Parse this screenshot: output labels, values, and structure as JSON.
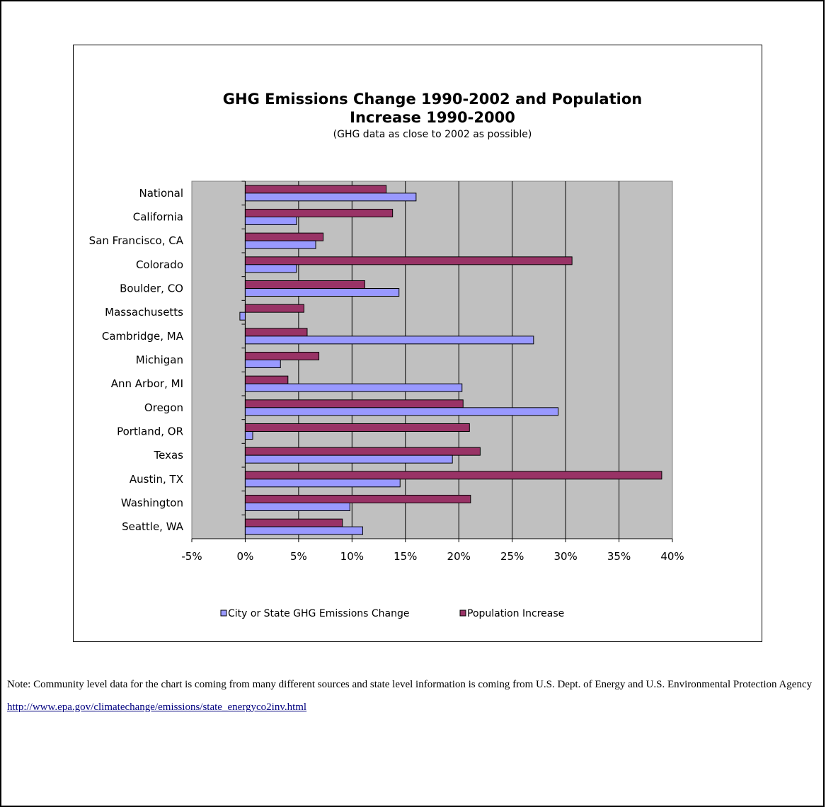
{
  "chart_data": {
    "type": "bar",
    "orientation": "horizontal",
    "title_line1": "GHG Emissions Change 1990-2002 and Population",
    "title_line2": "Increase 1990-2000",
    "subtitle": "(GHG data as close to 2002 as possible)",
    "categories": [
      "National",
      "California",
      "San Francisco, CA",
      "Colorado",
      "Boulder, CO",
      "Massachusetts",
      "Cambridge, MA",
      "Michigan",
      "Ann Arbor, MI",
      "Oregon",
      "Portland, OR",
      "Texas",
      "Austin, TX",
      "Washington",
      "Seattle, WA"
    ],
    "series": [
      {
        "name": "City or State GHG Emissions Change",
        "color": "#9999ff",
        "values": [
          16.0,
          4.8,
          6.6,
          4.8,
          14.4,
          -0.5,
          27.0,
          3.3,
          20.3,
          29.3,
          0.7,
          19.4,
          14.5,
          9.8,
          11.0
        ]
      },
      {
        "name": "Population Increase",
        "color": "#993366",
        "values": [
          13.2,
          13.8,
          7.3,
          30.6,
          11.2,
          5.5,
          5.8,
          6.9,
          4.0,
          20.4,
          21.0,
          22.0,
          39.0,
          21.1,
          9.1
        ]
      }
    ],
    "x_ticks": [
      "-5%",
      "0%",
      "5%",
      "10%",
      "15%",
      "20%",
      "25%",
      "30%",
      "35%",
      "40%"
    ],
    "xlim": [
      -5,
      40
    ],
    "xlabel": "",
    "ylabel": "",
    "grid": true,
    "plot_background": "#c0c0c0",
    "legend_position": "bottom"
  },
  "note": {
    "text": "Note: Community level data for the chart is coming from many different sources and state level information is coming from U.S. Dept. of Energy  and U.S. Environmental Protection Agency ",
    "link_text": "http://www.epa.gov/climatechange/emissions/state_energyco2inv.html"
  }
}
